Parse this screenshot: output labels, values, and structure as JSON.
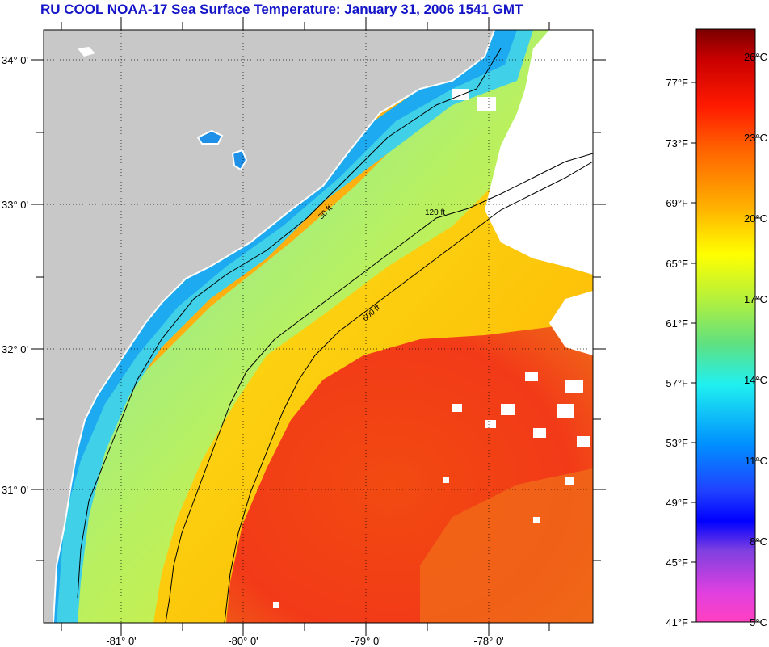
{
  "title": "RU COOL  NOAA-17  Sea Surface Temperature:  January 31, 2006 1541 GMT",
  "map": {
    "latitude_labels": [
      "34° 0'",
      "33° 0'",
      "32° 0'",
      "31° 0'"
    ],
    "longitude_labels": [
      "-81° 0'",
      "-80° 0'",
      "-79° 0'",
      "-78° 0'"
    ],
    "contour_labels": [
      "30 ft",
      "120 ft",
      "600 ft"
    ],
    "colors": {
      "land": "#c8c8c8",
      "cloud": "#ffffff",
      "coastal_cold": "#20b8f0",
      "shelf_cool": "#60e0d0",
      "mid_shelf": "#d8f040",
      "outer_shelf": "#ffe000",
      "gulf_stream": "#f03818"
    }
  },
  "colorbar": {
    "fahrenheit_labels": [
      "77°F",
      "73°F",
      "69°F",
      "65°F",
      "61°F",
      "57°F",
      "53°F",
      "49°F",
      "45°F",
      "41°F"
    ],
    "celsius_labels": [
      "26°C",
      "23°C",
      "20°C",
      "17°C",
      "14°C",
      "11°C",
      "8°C",
      "5°C"
    ]
  }
}
